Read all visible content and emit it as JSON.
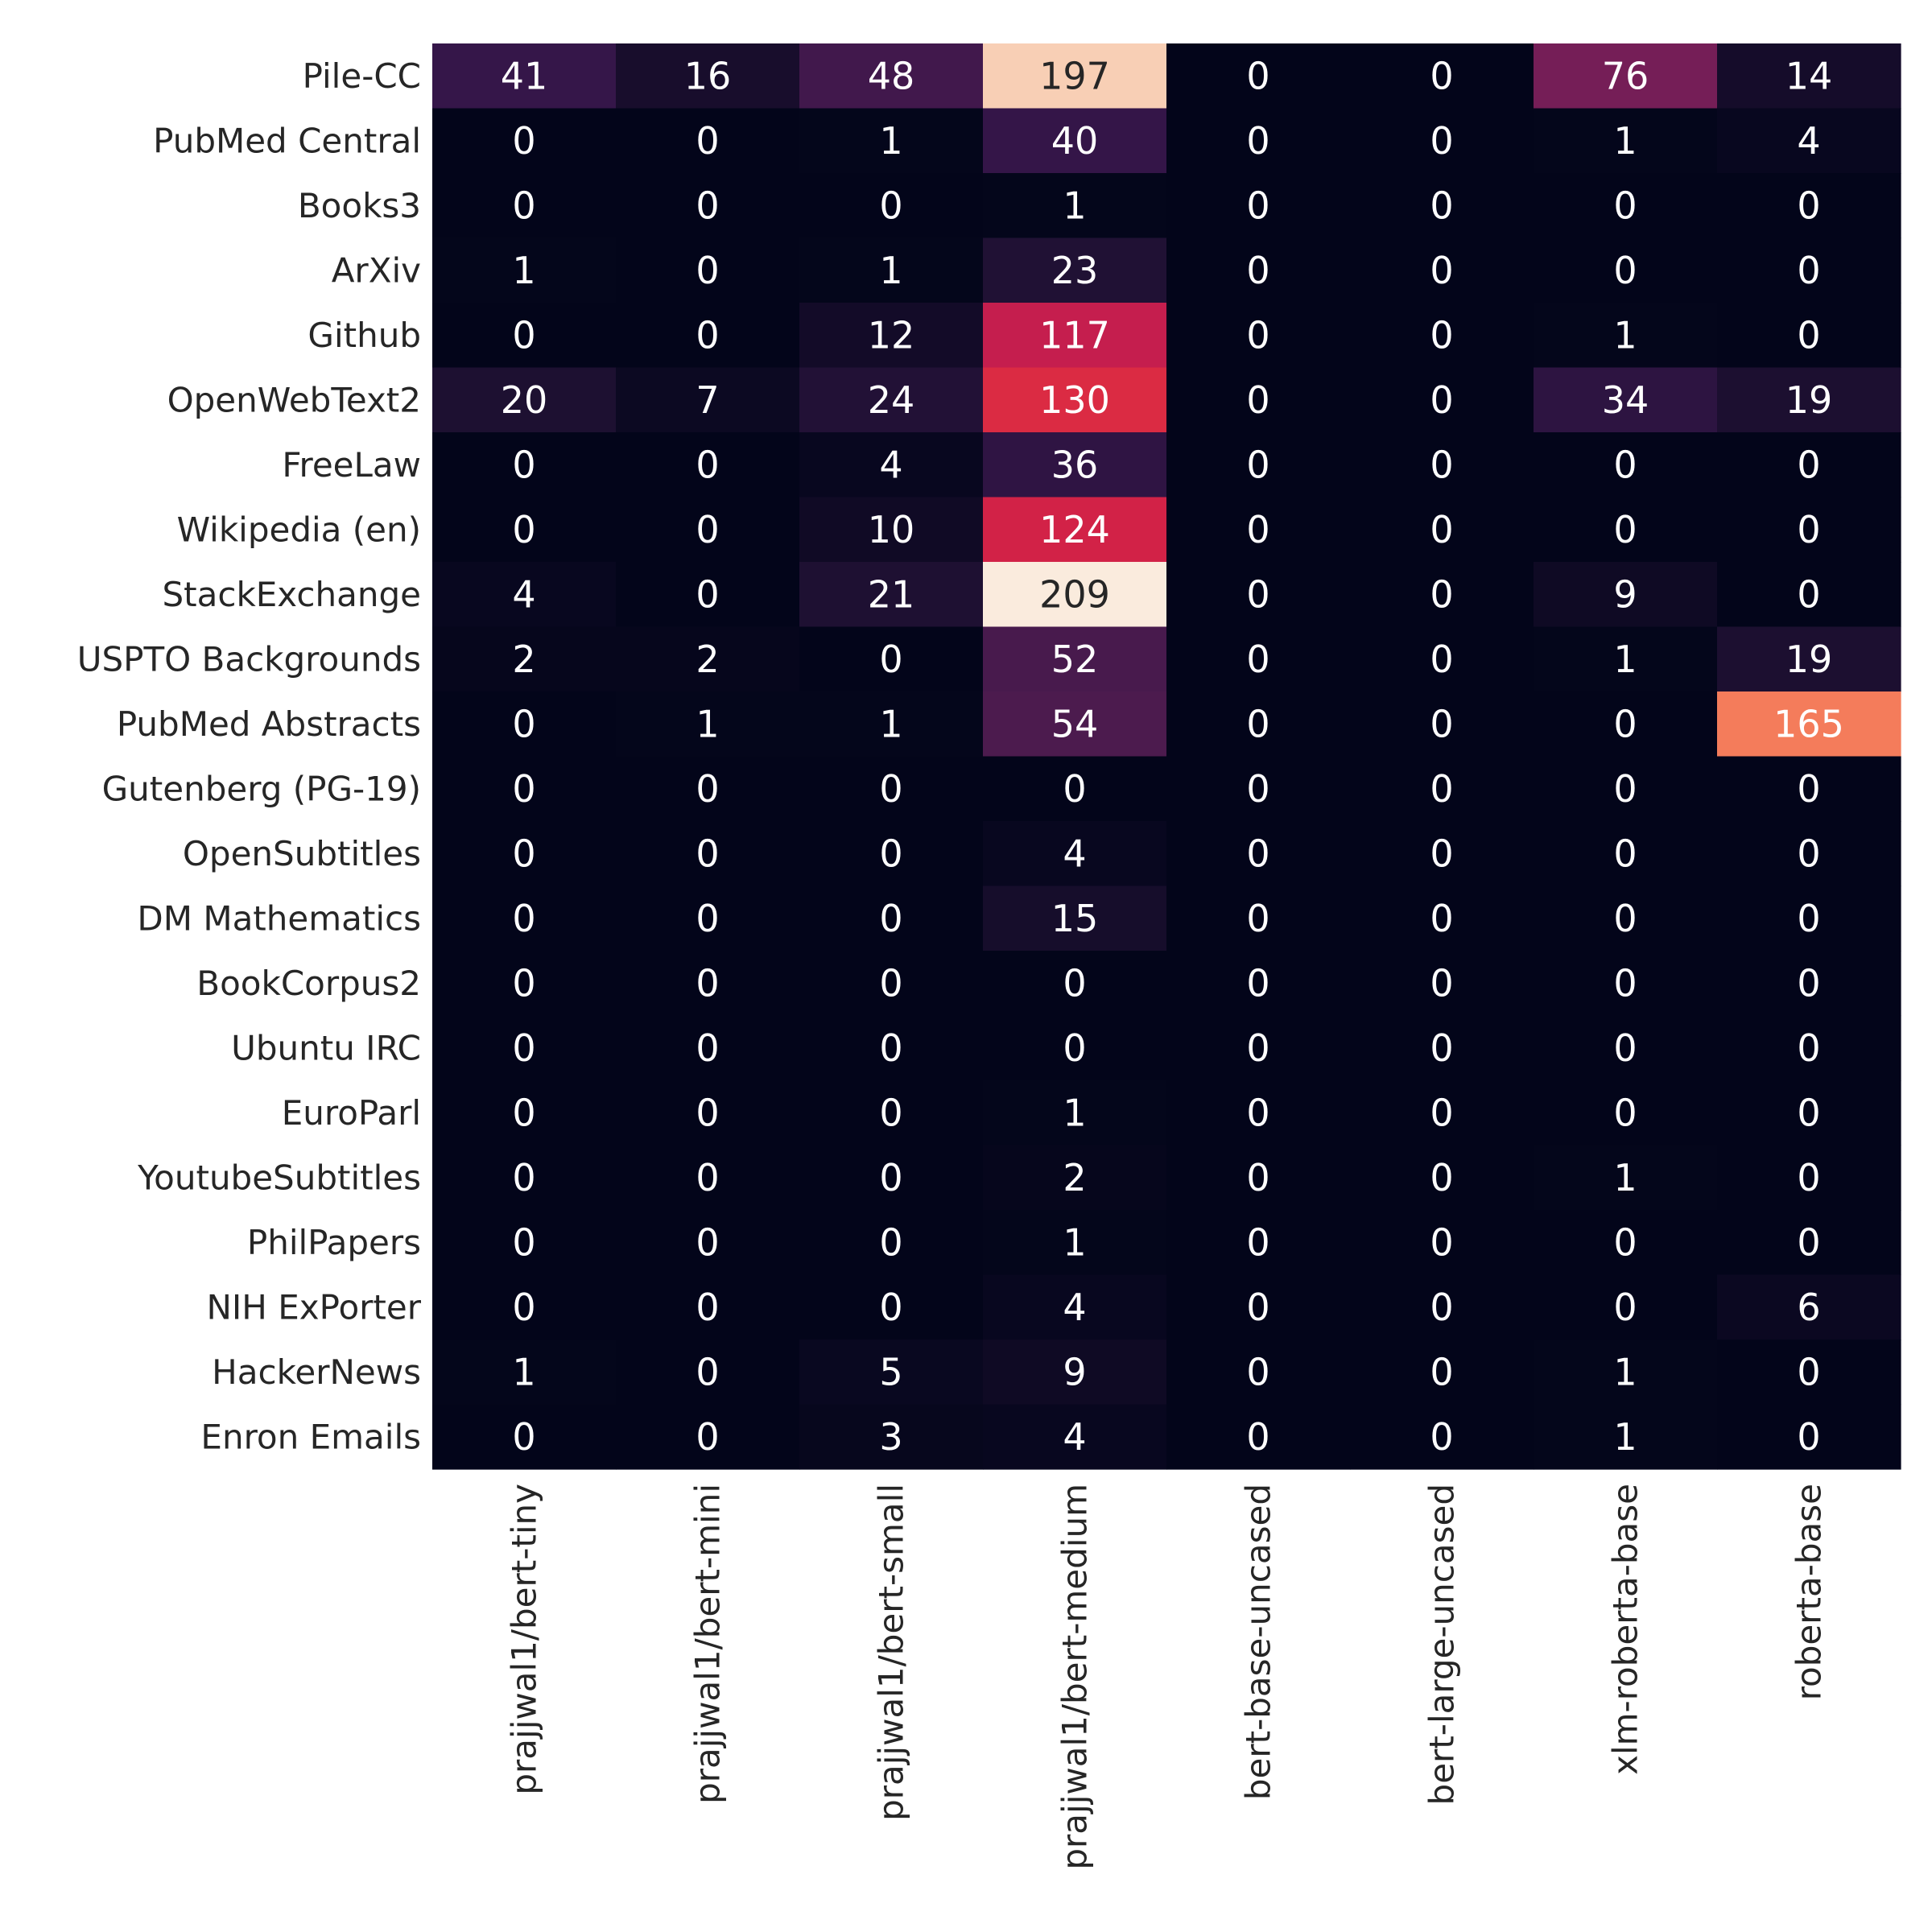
{
  "chart_data": {
    "type": "heatmap",
    "title": "",
    "xlabel": "",
    "ylabel": "",
    "colormap": "rocket",
    "value_range": [
      0,
      209
    ],
    "rows": [
      "Pile-CC",
      "PubMed Central",
      "Books3",
      "ArXiv",
      "Github",
      "OpenWebText2",
      "FreeLaw",
      "Wikipedia (en)",
      "StackExchange",
      "USPTO Backgrounds",
      "PubMed Abstracts",
      "Gutenberg (PG-19)",
      "OpenSubtitles",
      "DM Mathematics",
      "BookCorpus2",
      "Ubuntu IRC",
      "EuroParl",
      "YoutubeSubtitles",
      "PhilPapers",
      "NIH ExPorter",
      "HackerNews",
      "Enron Emails"
    ],
    "columns": [
      "prajjwal1/bert-tiny",
      "prajjwal1/bert-mini",
      "prajjwal1/bert-small",
      "prajjwal1/bert-medium",
      "bert-base-uncased",
      "bert-large-uncased",
      "xlm-roberta-base",
      "roberta-base"
    ],
    "values": [
      [
        41,
        16,
        48,
        197,
        0,
        0,
        76,
        14
      ],
      [
        0,
        0,
        1,
        40,
        0,
        0,
        1,
        4
      ],
      [
        0,
        0,
        0,
        1,
        0,
        0,
        0,
        0
      ],
      [
        1,
        0,
        1,
        23,
        0,
        0,
        0,
        0
      ],
      [
        0,
        0,
        12,
        117,
        0,
        0,
        1,
        0
      ],
      [
        20,
        7,
        24,
        130,
        0,
        0,
        34,
        19
      ],
      [
        0,
        0,
        4,
        36,
        0,
        0,
        0,
        0
      ],
      [
        0,
        0,
        10,
        124,
        0,
        0,
        0,
        0
      ],
      [
        4,
        0,
        21,
        209,
        0,
        0,
        9,
        0
      ],
      [
        2,
        2,
        0,
        52,
        0,
        0,
        1,
        19
      ],
      [
        0,
        1,
        1,
        54,
        0,
        0,
        0,
        165
      ],
      [
        0,
        0,
        0,
        0,
        0,
        0,
        0,
        0
      ],
      [
        0,
        0,
        0,
        4,
        0,
        0,
        0,
        0
      ],
      [
        0,
        0,
        0,
        15,
        0,
        0,
        0,
        0
      ],
      [
        0,
        0,
        0,
        0,
        0,
        0,
        0,
        0
      ],
      [
        0,
        0,
        0,
        0,
        0,
        0,
        0,
        0
      ],
      [
        0,
        0,
        0,
        1,
        0,
        0,
        0,
        0
      ],
      [
        0,
        0,
        0,
        2,
        0,
        0,
        1,
        0
      ],
      [
        0,
        0,
        0,
        1,
        0,
        0,
        0,
        0
      ],
      [
        0,
        0,
        0,
        4,
        0,
        0,
        0,
        6
      ],
      [
        1,
        0,
        5,
        9,
        0,
        0,
        1,
        0
      ],
      [
        0,
        0,
        3,
        4,
        0,
        0,
        1,
        0
      ]
    ]
  }
}
